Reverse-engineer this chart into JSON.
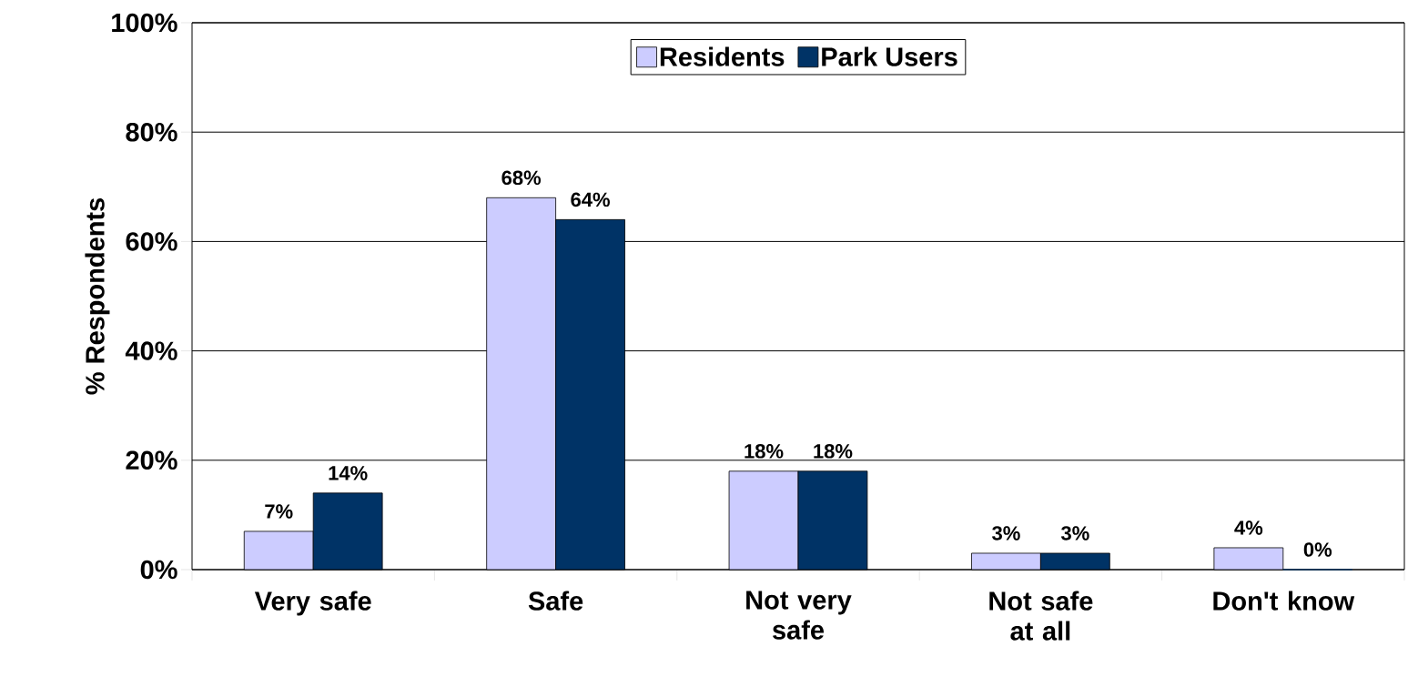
{
  "chart_data": {
    "type": "bar",
    "ylabel": "% Respondents",
    "categories": [
      "Very safe",
      "Safe",
      "Not very safe",
      "Not safe at all",
      "Don't know"
    ],
    "series": [
      {
        "name": "Residents",
        "color": "#ccccff",
        "values": [
          7,
          68,
          18,
          3,
          4
        ],
        "value_labels": [
          "7%",
          "68%",
          "18%",
          "3%",
          "4%"
        ]
      },
      {
        "name": "Park Users",
        "color": "#003366",
        "values": [
          14,
          64,
          18,
          3,
          0
        ],
        "value_labels": [
          "14%",
          "64%",
          "18%",
          "3%",
          "0%"
        ]
      }
    ],
    "ylim": [
      0,
      100
    ],
    "yticks": [
      {
        "value": 0,
        "label": "0%"
      },
      {
        "value": 20,
        "label": "20%"
      },
      {
        "value": 40,
        "label": "40%"
      },
      {
        "value": 60,
        "label": "60%"
      },
      {
        "value": 80,
        "label": "80%"
      },
      {
        "value": 100,
        "label": "100%"
      }
    ],
    "grid": "y",
    "legend": "top"
  }
}
